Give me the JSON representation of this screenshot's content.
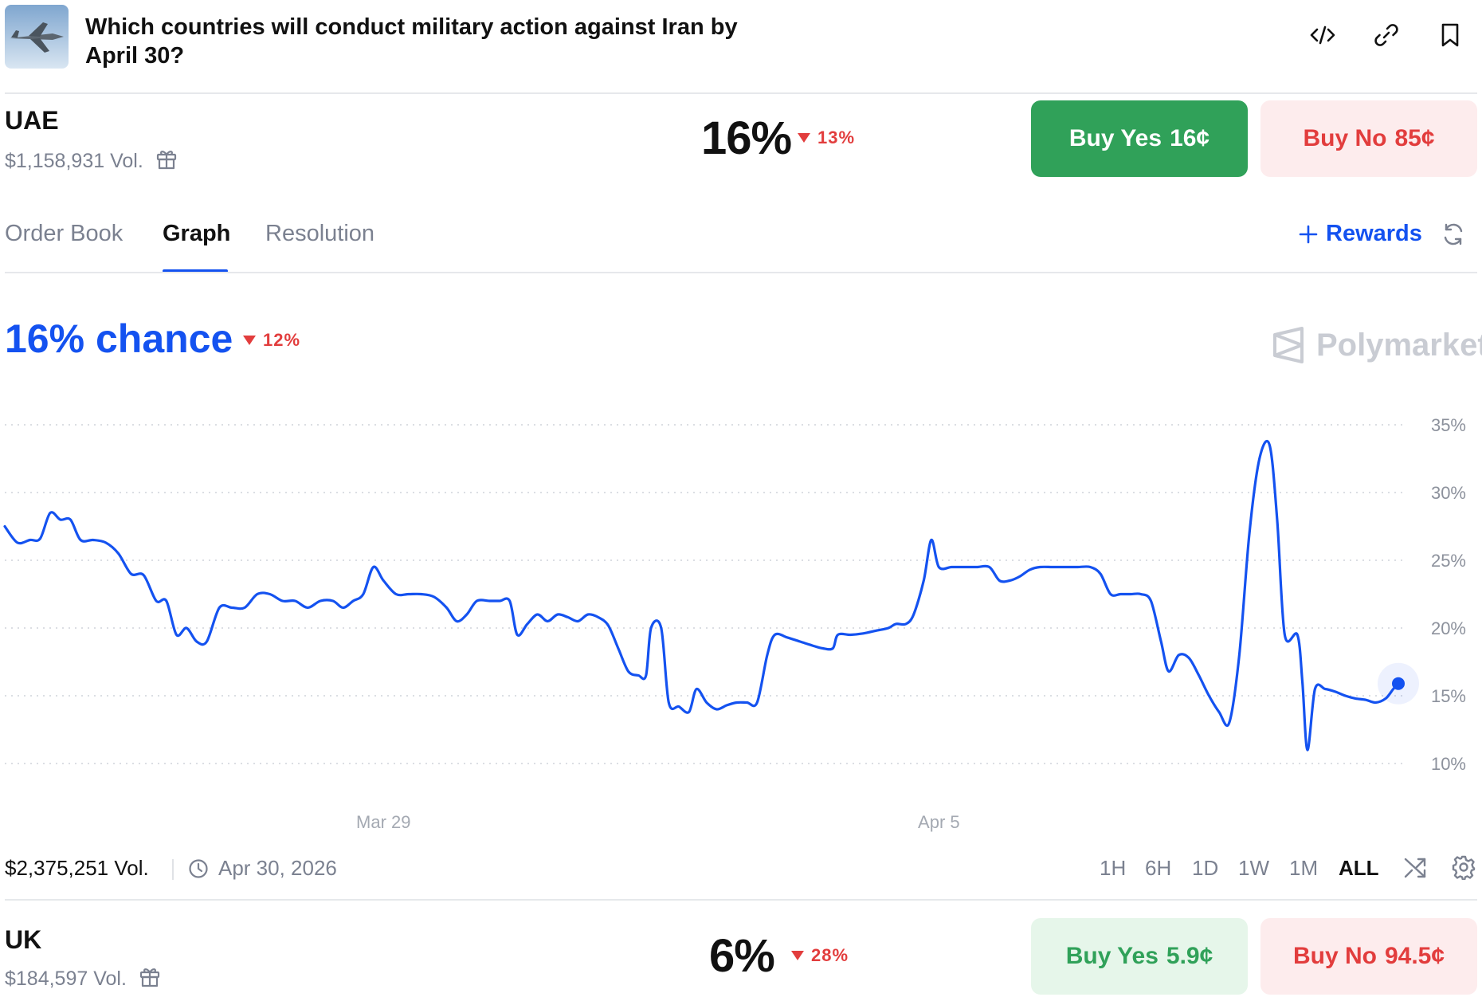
{
  "header": {
    "title": "Which countries will conduct military action against Iran by April 30?",
    "icons": [
      "embed-code-icon",
      "link-icon",
      "bookmark-icon"
    ]
  },
  "outcomes": [
    {
      "name": "UAE",
      "volume": "$1,158,931 Vol.",
      "probability": "16%",
      "change": "13%",
      "change_direction": "down",
      "buy_yes_label": "Buy Yes",
      "buy_yes_price": "16¢",
      "buy_no_label": "Buy No",
      "buy_no_price": "85¢"
    },
    {
      "name": "UK",
      "volume": "$184,597 Vol.",
      "probability": "6%",
      "change": "28%",
      "change_direction": "down",
      "buy_yes_label": "Buy Yes",
      "buy_yes_price": "5.9¢",
      "buy_no_label": "Buy No",
      "buy_no_price": "94.5¢"
    }
  ],
  "tabs": [
    "Order Book",
    "Graph",
    "Resolution"
  ],
  "active_tab": "Graph",
  "rewards_label": "Rewards",
  "chance": {
    "label": "16% chance",
    "change": "12%",
    "change_direction": "down"
  },
  "brand": "Polymarket",
  "footer": {
    "volume": "$2,375,251 Vol.",
    "end_date": "Apr 30, 2026",
    "ranges": [
      "1H",
      "6H",
      "1D",
      "1W",
      "1M",
      "ALL"
    ],
    "active_range": "ALL"
  },
  "colors": {
    "accent": "#1452f0",
    "green": "#30a159",
    "red": "#e23d3d",
    "muted": "#7b8190"
  },
  "chart_data": {
    "type": "line",
    "series": [
      {
        "values": [
          [
            0,
            27.5
          ],
          [
            0.5,
            26.3
          ],
          [
            1,
            26.5
          ],
          [
            1.4,
            26.6
          ],
          [
            1.8,
            28.5
          ],
          [
            2.2,
            28.0
          ],
          [
            2.6,
            28.0
          ],
          [
            3.0,
            26.5
          ],
          [
            3.5,
            26.5
          ],
          [
            4.0,
            26.3
          ],
          [
            4.5,
            25.5
          ],
          [
            5.0,
            24.0
          ],
          [
            5.5,
            23.9
          ],
          [
            6.0,
            22.0
          ],
          [
            6.4,
            22.0
          ],
          [
            6.8,
            19.5
          ],
          [
            7.2,
            20.0
          ],
          [
            7.6,
            19.0
          ],
          [
            8.0,
            19.0
          ],
          [
            8.5,
            21.5
          ],
          [
            9.0,
            21.5
          ],
          [
            9.5,
            21.5
          ],
          [
            10.0,
            22.5
          ],
          [
            10.5,
            22.5
          ],
          [
            11.0,
            22.0
          ],
          [
            11.5,
            22.0
          ],
          [
            12.0,
            21.5
          ],
          [
            12.5,
            22.0
          ],
          [
            13.0,
            22.0
          ],
          [
            13.4,
            21.5
          ],
          [
            13.8,
            22.0
          ],
          [
            14.2,
            22.5
          ],
          [
            14.6,
            24.5
          ],
          [
            15.0,
            23.5
          ],
          [
            15.5,
            22.5
          ],
          [
            16.0,
            22.5
          ],
          [
            16.5,
            22.5
          ],
          [
            17.0,
            22.3
          ],
          [
            17.5,
            21.5
          ],
          [
            17.9,
            20.5
          ],
          [
            18.3,
            21.0
          ],
          [
            18.7,
            22.0
          ],
          [
            19.2,
            22.0
          ],
          [
            19.6,
            22.0
          ],
          [
            20.0,
            22.0
          ],
          [
            20.3,
            19.5
          ],
          [
            20.7,
            20.3
          ],
          [
            21.1,
            21.0
          ],
          [
            21.5,
            20.5
          ],
          [
            21.9,
            21.0
          ],
          [
            22.3,
            20.8
          ],
          [
            22.7,
            20.5
          ],
          [
            23.1,
            21.0
          ],
          [
            23.5,
            20.8
          ],
          [
            23.9,
            20.2
          ],
          [
            24.3,
            18.5
          ],
          [
            24.7,
            16.8
          ],
          [
            25.1,
            16.5
          ],
          [
            25.4,
            16.5
          ],
          [
            25.6,
            20.0
          ],
          [
            26.0,
            20.0
          ],
          [
            26.3,
            14.5
          ],
          [
            26.7,
            14.2
          ],
          [
            27.1,
            13.8
          ],
          [
            27.4,
            15.5
          ],
          [
            27.8,
            14.5
          ],
          [
            28.2,
            14.0
          ],
          [
            28.6,
            14.3
          ],
          [
            29.0,
            14.5
          ],
          [
            29.4,
            14.5
          ],
          [
            29.8,
            14.5
          ],
          [
            30.2,
            18.0
          ],
          [
            30.5,
            19.5
          ],
          [
            31.0,
            19.3
          ],
          [
            31.5,
            19.0
          ],
          [
            32.0,
            18.7
          ],
          [
            32.4,
            18.5
          ],
          [
            32.8,
            18.5
          ],
          [
            33.0,
            19.5
          ],
          [
            33.5,
            19.5
          ],
          [
            34.0,
            19.6
          ],
          [
            34.5,
            19.8
          ],
          [
            35.0,
            20.0
          ],
          [
            35.3,
            20.3
          ],
          [
            35.7,
            20.3
          ],
          [
            36.0,
            21.0
          ],
          [
            36.4,
            23.5
          ],
          [
            36.7,
            26.5
          ],
          [
            37.0,
            24.5
          ],
          [
            37.5,
            24.5
          ],
          [
            38.0,
            24.5
          ],
          [
            38.5,
            24.5
          ],
          [
            39.0,
            24.5
          ],
          [
            39.4,
            23.5
          ],
          [
            39.8,
            23.5
          ],
          [
            40.2,
            23.8
          ],
          [
            40.6,
            24.3
          ],
          [
            41.0,
            24.5
          ],
          [
            41.5,
            24.5
          ],
          [
            42.0,
            24.5
          ],
          [
            42.5,
            24.5
          ],
          [
            43.0,
            24.5
          ],
          [
            43.4,
            24.0
          ],
          [
            43.8,
            22.5
          ],
          [
            44.2,
            22.5
          ],
          [
            44.6,
            22.5
          ],
          [
            45.0,
            22.5
          ],
          [
            45.4,
            22.0
          ],
          [
            45.8,
            19.0
          ],
          [
            46.1,
            16.8
          ],
          [
            46.5,
            18.0
          ],
          [
            46.9,
            17.8
          ],
          [
            47.3,
            16.5
          ],
          [
            47.7,
            15.0
          ],
          [
            48.1,
            13.8
          ],
          [
            48.5,
            13.0
          ],
          [
            48.9,
            18.0
          ],
          [
            49.3,
            27.0
          ],
          [
            49.7,
            32.5
          ],
          [
            50.1,
            33.5
          ],
          [
            50.4,
            28.0
          ],
          [
            50.7,
            19.5
          ],
          [
            51.2,
            19.5
          ],
          [
            51.4,
            16.0
          ],
          [
            51.6,
            11.0
          ],
          [
            51.9,
            15.5
          ],
          [
            52.3,
            15.5
          ],
          [
            52.7,
            15.3
          ],
          [
            53.1,
            15.0
          ],
          [
            53.5,
            14.8
          ],
          [
            53.9,
            14.7
          ],
          [
            54.3,
            14.5
          ],
          [
            54.7,
            14.8
          ],
          [
            55.0,
            15.5
          ],
          [
            55.2,
            15.9
          ]
        ]
      }
    ],
    "x_tick_labels": [
      {
        "label": "Mar 29",
        "x": 15
      },
      {
        "label": "Apr 5",
        "x": 37
      }
    ],
    "xlim": [
      0,
      55.2
    ],
    "y_tick_labels": [
      "10%",
      "15%",
      "20%",
      "25%",
      "30%",
      "35%"
    ],
    "y_ticks": [
      10,
      15,
      20,
      25,
      30,
      35
    ],
    "ylim": [
      7,
      37
    ],
    "grid": true,
    "current_value": 15.9
  }
}
